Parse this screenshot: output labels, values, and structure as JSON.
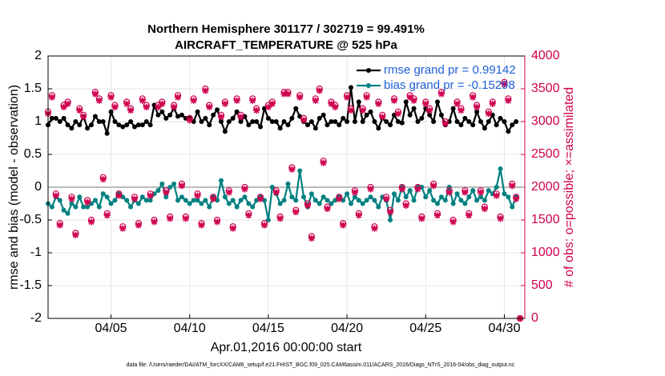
{
  "chart_data": {
    "type": "line",
    "title": "Northern Hemisphere 301177 / 302719 = 99.491%",
    "subtitle": "AIRCRAFT_TEMPERATURE @ 525 hPa",
    "xlabel": "Apr.01,2016 00:00:00 start",
    "ylabel": "rmse and bias (model - observation)",
    "y2label": "# of obs: o=possible; ×=assimilated",
    "footnote": "data file: /Users/raeder/DAI/ATM_forcXX/CAM6_setup/f.e21.FHIST_BGC.f09_025.CAM6assim.011/ACARS_2016/Diags_NTrS_2016-04/obs_diag_output.nc",
    "grid": true,
    "legend": "upper right",
    "xlim": [
      0,
      30.3
    ],
    "xticks": [
      {
        "value": 4,
        "label": "04/05"
      },
      {
        "value": 9,
        "label": "04/10"
      },
      {
        "value": 14,
        "label": "04/15"
      },
      {
        "value": 19,
        "label": "04/20"
      },
      {
        "value": 24,
        "label": "04/25"
      },
      {
        "value": 29,
        "label": "04/30"
      }
    ],
    "ylim": [
      -2,
      2
    ],
    "yticks": [
      -2,
      -1.5,
      -1,
      -0.5,
      0,
      0.5,
      1,
      1.5,
      2
    ],
    "y2lim": [
      0,
      4000
    ],
    "y2ticks": [
      0,
      500,
      1000,
      1500,
      2000,
      2500,
      3000,
      3500,
      4000
    ],
    "x": [
      0,
      0.25,
      0.5,
      0.75,
      1,
      1.25,
      1.5,
      1.75,
      2,
      2.25,
      2.5,
      2.75,
      3,
      3.25,
      3.5,
      3.75,
      4,
      4.25,
      4.5,
      4.75,
      5,
      5.25,
      5.5,
      5.75,
      6,
      6.25,
      6.5,
      6.75,
      7,
      7.25,
      7.5,
      7.75,
      8,
      8.25,
      8.5,
      8.75,
      9,
      9.25,
      9.5,
      9.75,
      10,
      10.25,
      10.5,
      10.75,
      11,
      11.25,
      11.5,
      11.75,
      12,
      12.25,
      12.5,
      12.75,
      13,
      13.25,
      13.5,
      13.75,
      14,
      14.25,
      14.5,
      14.75,
      15,
      15.25,
      15.5,
      15.75,
      16,
      16.25,
      16.5,
      16.75,
      17,
      17.25,
      17.5,
      17.75,
      18,
      18.25,
      18.5,
      18.75,
      19,
      19.25,
      19.5,
      19.75,
      20,
      20.25,
      20.5,
      20.75,
      21,
      21.25,
      21.5,
      21.75,
      22,
      22.25,
      22.5,
      22.75,
      23,
      23.25,
      23.5,
      23.75,
      24,
      24.25,
      24.5,
      24.75,
      25,
      25.25,
      25.5,
      25.75,
      26,
      26.25,
      26.5,
      26.75,
      27,
      27.25,
      27.5,
      27.75,
      28,
      28.25,
      28.5,
      28.75,
      29,
      29.25,
      29.5,
      29.75,
      30
    ],
    "series": [
      {
        "name": "rmse grand pr = 0.99142",
        "color": "#000000",
        "marker": "dot",
        "line": true,
        "values": [
          0.95,
          1.05,
          1.05,
          1.0,
          1.05,
          0.95,
          0.9,
          1.0,
          0.95,
          1.08,
          0.9,
          0.95,
          1.08,
          1.0,
          1.0,
          0.82,
          1.15,
          1.0,
          0.95,
          0.92,
          0.95,
          1.0,
          0.92,
          0.95,
          0.95,
          1.0,
          0.95,
          1.25,
          1.1,
          1.15,
          1.05,
          1.1,
          1.2,
          1.08,
          1.1,
          1.05,
          1.05,
          1.0,
          1.15,
          1.0,
          1.05,
          0.95,
          1.1,
          1.18,
          1.0,
          0.85,
          1.0,
          1.05,
          1.15,
          1.0,
          1.08,
          0.95,
          1.0,
          1.0,
          0.92,
          1.2,
          1.05,
          1.0,
          1.0,
          0.9,
          1.0,
          0.95,
          1.05,
          1.2,
          1.08,
          1.0,
          0.95,
          1.0,
          0.9,
          1.05,
          1.1,
          0.95,
          1.0,
          1.0,
          0.95,
          1.05,
          1.0,
          1.52,
          1.0,
          1.3,
          1.0,
          1.1,
          1.15,
          1.0,
          0.9,
          1.05,
          1.0,
          0.95,
          1.1,
          1.0,
          0.98,
          1.3,
          1.1,
          1.2,
          1.0,
          1.05,
          1.2,
          1.1,
          1.0,
          1.3,
          1.1,
          0.95,
          1.0,
          1.2,
          1.0,
          0.95,
          1.05,
          1.0,
          0.95,
          1.15,
          1.0,
          0.9,
          1.0,
          1.1,
          0.95,
          1.05,
          1.0,
          0.85,
          0.95,
          1.0,
          null
        ]
      },
      {
        "name": "bias grand pr = -0.15298",
        "color": "#008080",
        "marker": "dot",
        "line": true,
        "values": [
          -0.25,
          -0.3,
          -0.15,
          -0.2,
          -0.35,
          -0.4,
          -0.25,
          -0.3,
          -0.15,
          -0.3,
          -0.3,
          -0.25,
          -0.2,
          -0.3,
          -0.1,
          -0.15,
          -0.25,
          -0.2,
          -0.1,
          -0.15,
          -0.2,
          -0.3,
          -0.2,
          -0.25,
          -0.15,
          -0.2,
          -0.2,
          -0.1,
          -0.05,
          0.05,
          -0.15,
          0.0,
          0.05,
          -0.2,
          -0.15,
          -0.2,
          -0.25,
          -0.2,
          -0.2,
          -0.25,
          -0.2,
          -0.3,
          -0.15,
          -0.2,
          0.1,
          -0.15,
          -0.25,
          -0.2,
          -0.3,
          -0.2,
          -0.15,
          -0.25,
          -0.3,
          -0.2,
          -0.15,
          -0.2,
          -0.5,
          0.0,
          -0.1,
          -0.25,
          -0.2,
          0.05,
          -0.15,
          -0.2,
          0.25,
          -0.15,
          -0.3,
          -0.1,
          -0.2,
          -0.25,
          -0.15,
          -0.2,
          -0.25,
          -0.2,
          -0.15,
          -0.2,
          -0.1,
          -0.25,
          -0.15,
          -0.2,
          -0.25,
          -0.2,
          -0.15,
          -0.2,
          -0.3,
          -0.15,
          -0.2,
          -0.5,
          -0.1,
          -0.2,
          0.0,
          -0.15,
          -0.05,
          -0.2,
          0.0,
          0.0,
          -0.15,
          -0.05,
          -0.2,
          -0.25,
          -0.15,
          -0.2,
          0.0,
          -0.25,
          -0.1,
          -0.2,
          -0.25,
          -0.15,
          -0.05,
          -0.2,
          -0.15,
          -0.2,
          -0.05,
          -0.1,
          0.0,
          0.28,
          -0.1,
          -0.15,
          -0.3,
          -0.15,
          null
        ]
      },
      {
        "color": "#d0004f",
        "marker": "o",
        "axis": "y2",
        "values": [
          3150,
          3400,
          1900,
          1450,
          3250,
          3300,
          1850,
          1300,
          3200,
          3100,
          1800,
          1500,
          3450,
          3350,
          2150,
          1600,
          3400,
          3250,
          1900,
          1400,
          3300,
          3200,
          1850,
          1450,
          3350,
          3250,
          1900,
          1500,
          3250,
          3300,
          1950,
          1550,
          3250,
          3400,
          2050,
          1550,
          3050,
          3350,
          1900,
          1450,
          3500,
          3250,
          1850,
          1500,
          3100,
          3300,
          1950,
          1400,
          3350,
          3100,
          2000,
          1600,
          3350,
          3200,
          1850,
          1450,
          3250,
          3300,
          1950,
          1550,
          3450,
          3450,
          2300,
          1650,
          3400,
          3050,
          1750,
          1250,
          3350,
          3500,
          2400,
          1700,
          3300,
          3250,
          1850,
          1450,
          3400,
          3200,
          1950,
          1600,
          3200,
          3400,
          2000,
          1400,
          3300,
          3100,
          1850,
          1650,
          3350,
          3150,
          2000,
          1750,
          3400,
          3350,
          2000,
          1550,
          3300,
          3200,
          2050,
          1600,
          3450,
          3000,
          1950,
          1500,
          3300,
          3200,
          1950,
          1600,
          3400,
          3250,
          1950,
          1700,
          3150,
          3300,
          1900,
          1550,
          3600,
          3350,
          2050,
          1850,
          0
        ]
      },
      {
        "color": "#d0004f",
        "marker": "*",
        "axis": "y2",
        "values": [
          3120,
          3370,
          1870,
          1420,
          3220,
          3270,
          1820,
          1270,
          3170,
          3070,
          1770,
          1470,
          3420,
          3320,
          2120,
          1570,
          3370,
          3220,
          1870,
          1370,
          3270,
          3170,
          1820,
          1420,
          3320,
          3220,
          1870,
          1470,
          3220,
          3270,
          1920,
          1520,
          3220,
          3370,
          2020,
          1520,
          3020,
          3320,
          1870,
          1420,
          3470,
          3220,
          1820,
          1470,
          3070,
          3270,
          1920,
          1370,
          3320,
          3070,
          1970,
          1570,
          3320,
          3170,
          1820,
          1420,
          3220,
          3270,
          1920,
          1520,
          3420,
          3420,
          2270,
          1620,
          3370,
          3020,
          1720,
          1220,
          3320,
          3470,
          2370,
          1670,
          3270,
          3220,
          1820,
          1420,
          3370,
          3170,
          1920,
          1570,
          3170,
          3370,
          1970,
          1370,
          3270,
          3070,
          1820,
          1620,
          3320,
          3120,
          1970,
          1720,
          3370,
          3320,
          1970,
          1520,
          3270,
          3170,
          2020,
          1570,
          3420,
          2970,
          1920,
          1470,
          3270,
          3170,
          1920,
          1570,
          3370,
          3220,
          1920,
          1670,
          3120,
          3270,
          1870,
          1520,
          3570,
          3320,
          2020,
          1820,
          0
        ]
      }
    ]
  }
}
